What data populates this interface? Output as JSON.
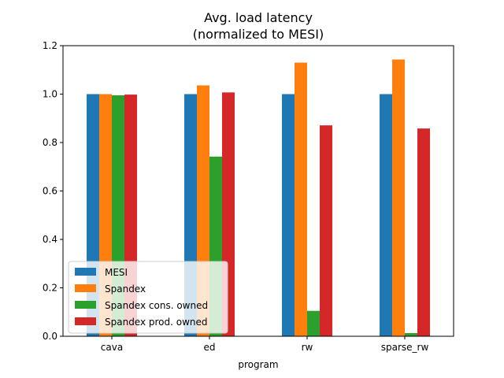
{
  "chart_data": {
    "type": "bar",
    "title": "Avg. load latency",
    "subtitle": "(normalized to MESI)",
    "xlabel": "program",
    "ylabel": "",
    "ylim": [
      0,
      1.2
    ],
    "yticks": [
      "0.0",
      "0.2",
      "0.4",
      "0.6",
      "0.8",
      "1.0",
      "1.2"
    ],
    "categories": [
      "cava",
      "ed",
      "rw",
      "sparse_rw"
    ],
    "series": [
      {
        "name": "MESI",
        "color": "#1f77b4",
        "values": [
          1.0,
          1.0,
          1.0,
          1.0
        ]
      },
      {
        "name": "Spandex",
        "color": "#ff7f0e",
        "values": [
          1.0,
          1.036,
          1.13,
          1.143
        ]
      },
      {
        "name": "Spandex cons. owned",
        "color": "#2ca02c",
        "values": [
          0.995,
          0.742,
          0.105,
          0.013
        ]
      },
      {
        "name": "Spandex prod. owned",
        "color": "#d62728",
        "values": [
          0.998,
          1.007,
          0.871,
          0.858
        ]
      }
    ],
    "legend": "lower-left",
    "grid": false
  }
}
